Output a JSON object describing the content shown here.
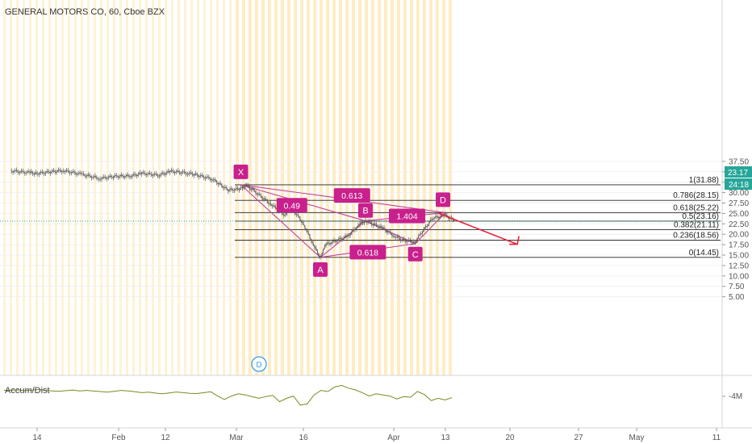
{
  "chart_data": {
    "type": "line",
    "title": "GENERAL MOTORS CO, 60, Cboe BZX",
    "y_axis": {
      "ticks": [
        "37.50",
        "35.00",
        "32.50",
        "30.00",
        "27.50",
        "25.00",
        "22.50",
        "20.00",
        "17.50",
        "15.00",
        "12.50",
        "10.00",
        "7.50",
        "5.00"
      ],
      "range": [
        3.6,
        38.8
      ]
    },
    "x_axis": {
      "ticks": [
        "14",
        "Feb",
        "12",
        "Mar",
        "16",
        "Apr",
        "13",
        "20",
        "27",
        "May",
        "11"
      ]
    },
    "price_series": [
      {
        "date": "Jan 3",
        "close": 35.2
      },
      {
        "date": "Jan 8",
        "close": 34.8
      },
      {
        "date": "Jan 10",
        "close": 34.6
      },
      {
        "date": "Jan 14",
        "close": 35.0
      },
      {
        "date": "Jan 17",
        "close": 35.3
      },
      {
        "date": "Jan 22",
        "close": 34.4
      },
      {
        "date": "Jan 27",
        "close": 33.4
      },
      {
        "date": "Jan 31",
        "close": 33.9
      },
      {
        "date": "Feb 4",
        "close": 34.0
      },
      {
        "date": "Feb 7",
        "close": 34.6
      },
      {
        "date": "Feb 11",
        "close": 34.2
      },
      {
        "date": "Feb 14",
        "close": 35.1
      },
      {
        "date": "Feb 18",
        "close": 34.7
      },
      {
        "date": "Feb 20",
        "close": 34.3
      },
      {
        "date": "Feb 24",
        "close": 33.3
      },
      {
        "date": "Feb 26",
        "close": 32.0
      },
      {
        "date": "Feb 28",
        "close": 30.6
      },
      {
        "date": "Mar 2",
        "close": 30.9
      },
      {
        "date": "Mar 3",
        "close": 31.9
      },
      {
        "date": "Mar 5",
        "close": 30.4
      },
      {
        "date": "Mar 9",
        "close": 27.0
      },
      {
        "date": "Mar 12",
        "close": 24.5
      },
      {
        "date": "Mar 13",
        "close": 27.0
      },
      {
        "date": "Mar 16",
        "close": 22.6
      },
      {
        "date": "Mar 18",
        "close": 17.0
      },
      {
        "date": "Mar 19",
        "close": 14.45
      },
      {
        "date": "Mar 20",
        "close": 17.5
      },
      {
        "date": "Mar 24",
        "close": 19.6
      },
      {
        "date": "Mar 26",
        "close": 22.4
      },
      {
        "date": "Mar 27",
        "close": 23.3
      },
      {
        "date": "Mar 30",
        "close": 21.5
      },
      {
        "date": "Apr 1",
        "close": 19.7
      },
      {
        "date": "Apr 3",
        "close": 18.6
      },
      {
        "date": "Apr 6",
        "close": 18.2
      },
      {
        "date": "Apr 8",
        "close": 21.0
      },
      {
        "date": "Apr 10",
        "close": 23.8
      },
      {
        "date": "Apr 13",
        "close": 24.6
      },
      {
        "date": "Apr 14",
        "close": 23.2
      }
    ],
    "last_price": "23.17",
    "countdown": "24:18",
    "fib_levels": [
      {
        "label": "1(31.88)",
        "value": 31.88
      },
      {
        "label": "0.786(28.15)",
        "value": 28.15
      },
      {
        "label": "0.618(25.22)",
        "value": 25.22
      },
      {
        "label": "0.5(23.16)",
        "value": 23.16
      },
      {
        "label": "0.382(21.11)",
        "value": 21.11
      },
      {
        "label": "0.236(18.56)",
        "value": 18.56
      },
      {
        "label": "0(14.45)",
        "value": 14.45
      }
    ],
    "pattern_points": [
      {
        "label": "X",
        "date": "Mar 2",
        "price": 31.88
      },
      {
        "label": "A",
        "date": "Mar 19",
        "price": 14.45
      },
      {
        "label": "B",
        "date": "Mar 27",
        "price": 23.2
      },
      {
        "label": "C",
        "date": "Apr 6",
        "price": 17.75
      },
      {
        "label": "D",
        "date": "Apr 13",
        "price": 25.2
      }
    ],
    "ratios": [
      "0.49",
      "0.613",
      "1.404",
      "0.618"
    ],
    "projection": {
      "from_date": "Apr 13",
      "from_price": 25.2,
      "to_date": "Apr 21",
      "to_price": 17.6
    },
    "indicator": {
      "name": "Accum/Dist",
      "axis_label": "-4M",
      "values": [
        0.3,
        0.31,
        0.32,
        0.29,
        0.31,
        0.34,
        0.3,
        0.28,
        0.26,
        0.29,
        0.31,
        0.28,
        0.3,
        0.27,
        0.25,
        0.22,
        0.26,
        0.3,
        0.28,
        0.24,
        0.2,
        0.22,
        0.18,
        0.15,
        0.19,
        0.23,
        0.2,
        0.17,
        0.16,
        0.2,
        0.24,
        0.05,
        -0.1,
        0.05,
        0.15,
        0.1,
        0.02,
        -0.05,
        0.03,
        0.08,
        -0.2,
        -0.05,
        0.05,
        -0.35,
        -0.3,
        0.1,
        0.3,
        0.25,
        0.45,
        0.52,
        0.4,
        0.32,
        0.2,
        0.05,
        0.15,
        0.1,
        0.05,
        -0.08,
        0.02,
        0.0,
        0.25,
        0.12,
        -0.15,
        -0.05,
        -0.12,
        -0.02
      ]
    },
    "badge": "D",
    "colors": {
      "price": "#555555",
      "pattern": "#c2409a",
      "label_bg": "#c8208c",
      "fib_line": "#222222",
      "projection": "#e8203a",
      "stripe": "#ffe9b8",
      "last_price_bg": "#26a69a",
      "indicator": "#7a8a20",
      "badge": "#3ba0dc"
    }
  }
}
